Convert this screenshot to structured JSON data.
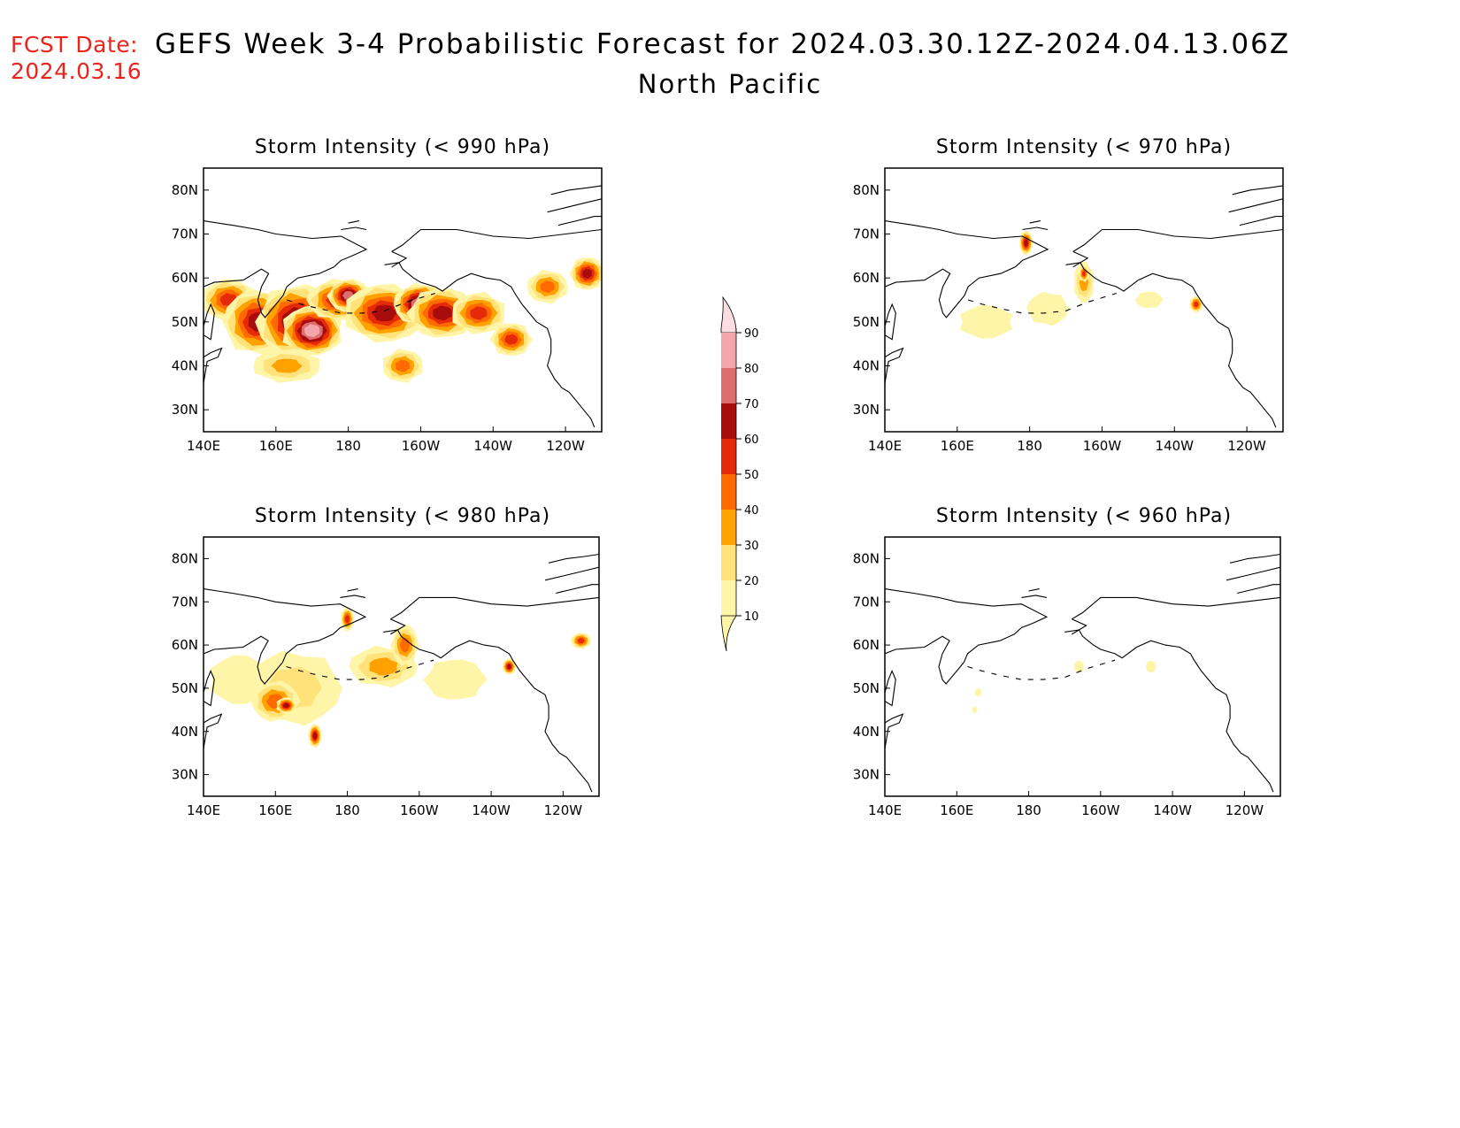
{
  "fcst_label": "FCST Date:",
  "fcst_date": "2024.03.16",
  "title": "GEFS Week 3-4 Probabilistic Forecast for 2024.03.30.12Z-2024.04.13.06Z",
  "subtitle": "North Pacific",
  "colors": {
    "fcst": "#e8241c",
    "levels": [
      "#fff5a8",
      "#ffe27a",
      "#ffa200",
      "#ff6a00",
      "#e52a0a",
      "#a80c0c",
      "#dd6e6e",
      "#f2a5ab",
      "#fbdde2"
    ]
  },
  "colorbar": {
    "levels": [
      "10",
      "20",
      "30",
      "40",
      "50",
      "60",
      "70",
      "80",
      "90"
    ]
  },
  "map_axes": {
    "lon_ticks": [
      "140E",
      "160E",
      "180",
      "160W",
      "140W",
      "120W"
    ],
    "lat_ticks": [
      "80N",
      "70N",
      "60N",
      "50N",
      "40N",
      "30N"
    ],
    "lon_range": [
      140,
      250
    ],
    "lat_range": [
      25,
      85
    ]
  },
  "panels": [
    {
      "title": "Storm Intensity (< 990 hPa)",
      "blobs": [
        {
          "lon": 147,
          "lat": 55,
          "rx": 8,
          "ry": 5,
          "lvl": 4
        },
        {
          "lon": 155,
          "lat": 50,
          "rx": 10,
          "ry": 8,
          "lvl": 5
        },
        {
          "lon": 166,
          "lat": 50,
          "rx": 12,
          "ry": 9,
          "lvl": 6
        },
        {
          "lon": 170,
          "lat": 48,
          "rx": 9,
          "ry": 6,
          "lvl": 7
        },
        {
          "lon": 178,
          "lat": 55,
          "rx": 10,
          "ry": 5,
          "lvl": 5
        },
        {
          "lon": 180,
          "lat": 56,
          "rx": 6,
          "ry": 4,
          "lvl": 6
        },
        {
          "lon": 190,
          "lat": 52,
          "rx": 12,
          "ry": 7,
          "lvl": 5
        },
        {
          "lon": 200,
          "lat": 54,
          "rx": 8,
          "ry": 5,
          "lvl": 7
        },
        {
          "lon": 206,
          "lat": 52,
          "rx": 10,
          "ry": 6,
          "lvl": 5
        },
        {
          "lon": 216,
          "lat": 52,
          "rx": 8,
          "ry": 5,
          "lvl": 4
        },
        {
          "lon": 235,
          "lat": 58,
          "rx": 6,
          "ry": 4,
          "lvl": 3
        },
        {
          "lon": 246,
          "lat": 61,
          "rx": 5,
          "ry": 4,
          "lvl": 5
        },
        {
          "lon": 163,
          "lat": 40,
          "rx": 10,
          "ry": 4,
          "lvl": 2
        },
        {
          "lon": 195,
          "lat": 40,
          "rx": 6,
          "ry": 4,
          "lvl": 3
        },
        {
          "lon": 225,
          "lat": 46,
          "rx": 6,
          "ry": 4,
          "lvl": 4
        }
      ]
    },
    {
      "title": "Storm Intensity (< 970 hPa)",
      "blobs": [
        {
          "lon": 168,
          "lat": 50,
          "rx": 8,
          "ry": 4,
          "lvl": 0
        },
        {
          "lon": 185,
          "lat": 53,
          "rx": 6,
          "ry": 4,
          "lvl": 0
        },
        {
          "lon": 179,
          "lat": 68,
          "rx": 2,
          "ry": 3,
          "lvl": 5
        },
        {
          "lon": 195,
          "lat": 59,
          "rx": 3,
          "ry": 5,
          "lvl": 2
        },
        {
          "lon": 195,
          "lat": 61,
          "rx": 1.5,
          "ry": 2,
          "lvl": 4
        },
        {
          "lon": 213,
          "lat": 55,
          "rx": 4,
          "ry": 2,
          "lvl": 0
        },
        {
          "lon": 226,
          "lat": 54,
          "rx": 2,
          "ry": 2,
          "lvl": 4
        }
      ]
    },
    {
      "title": "Storm Intensity (< 980 hPa)",
      "blobs": [
        {
          "lon": 150,
          "lat": 52,
          "rx": 9,
          "ry": 6,
          "lvl": 0
        },
        {
          "lon": 165,
          "lat": 50,
          "rx": 14,
          "ry": 9,
          "lvl": 1
        },
        {
          "lon": 160,
          "lat": 47,
          "rx": 7,
          "ry": 5,
          "lvl": 3
        },
        {
          "lon": 163,
          "lat": 46,
          "rx": 3,
          "ry": 2,
          "lvl": 5
        },
        {
          "lon": 190,
          "lat": 55,
          "rx": 10,
          "ry": 5,
          "lvl": 2
        },
        {
          "lon": 196,
          "lat": 60,
          "rx": 4,
          "ry": 5,
          "lvl": 3
        },
        {
          "lon": 180,
          "lat": 66,
          "rx": 2,
          "ry": 3,
          "lvl": 4
        },
        {
          "lon": 171,
          "lat": 39,
          "rx": 2,
          "ry": 3,
          "lvl": 5
        },
        {
          "lon": 210,
          "lat": 52,
          "rx": 9,
          "ry": 5,
          "lvl": 0
        },
        {
          "lon": 225,
          "lat": 55,
          "rx": 2,
          "ry": 2,
          "lvl": 5
        },
        {
          "lon": 245,
          "lat": 61,
          "rx": 3,
          "ry": 2,
          "lvl": 4
        }
      ]
    },
    {
      "title": "Storm Intensity (< 960 hPa)",
      "blobs": [
        {
          "lon": 194,
          "lat": 55,
          "rx": 1.5,
          "ry": 1.5,
          "lvl": 0
        },
        {
          "lon": 214,
          "lat": 55,
          "rx": 1.5,
          "ry": 1.5,
          "lvl": 0
        },
        {
          "lon": 166,
          "lat": 49,
          "rx": 1,
          "ry": 1,
          "lvl": 0
        },
        {
          "lon": 165,
          "lat": 45,
          "rx": 0.8,
          "ry": 0.8,
          "lvl": 0
        }
      ]
    }
  ]
}
